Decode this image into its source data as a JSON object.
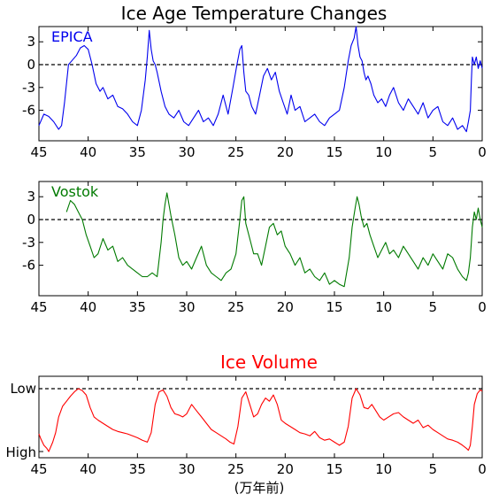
{
  "title": "Ice Age Temperature Changes",
  "xlabel": "(万年前)",
  "colors": {
    "epica": "#0000ee",
    "vostok": "#007a00",
    "ice": "#ff0000"
  },
  "chart_data": [
    {
      "type": "line",
      "name": "EPICA",
      "label": "EPICA",
      "xlim": [
        45,
        0
      ],
      "ylim": [
        -10,
        5
      ],
      "yticks": [
        3,
        0,
        -3,
        -6
      ],
      "xticks": [
        45,
        40,
        35,
        30,
        25,
        20,
        15,
        10,
        5,
        0
      ],
      "x": [
        45.0,
        44.5,
        44.0,
        43.5,
        43.0,
        42.7,
        42.4,
        42.0,
        41.6,
        41.2,
        40.8,
        40.4,
        40.0,
        39.6,
        39.2,
        38.8,
        38.5,
        38.0,
        37.5,
        37.0,
        36.5,
        36.0,
        35.5,
        35.0,
        34.6,
        34.2,
        34.0,
        33.8,
        33.6,
        33.4,
        33.2,
        33.0,
        32.6,
        32.2,
        31.8,
        31.3,
        30.8,
        30.3,
        29.8,
        29.3,
        28.8,
        28.3,
        27.8,
        27.3,
        26.8,
        26.3,
        25.8,
        25.3,
        24.9,
        24.6,
        24.4,
        24.2,
        24.0,
        23.7,
        23.4,
        23.0,
        22.6,
        22.2,
        21.8,
        21.4,
        21.0,
        20.6,
        20.2,
        19.8,
        19.4,
        19.0,
        18.5,
        18.0,
        17.5,
        17.0,
        16.5,
        16.0,
        15.5,
        15.0,
        14.5,
        14.0,
        13.6,
        13.3,
        13.0,
        12.8,
        12.6,
        12.4,
        12.2,
        12.0,
        11.8,
        11.6,
        11.3,
        11.0,
        10.6,
        10.2,
        9.8,
        9.4,
        9.0,
        8.5,
        8.0,
        7.5,
        7.0,
        6.5,
        6.0,
        5.5,
        5.0,
        4.5,
        4.0,
        3.5,
        3.0,
        2.5,
        2.0,
        1.6,
        1.4,
        1.2,
        1.1,
        1.0,
        0.8,
        0.6,
        0.4,
        0.2,
        0.0
      ],
      "y": [
        -8.0,
        -6.5,
        -6.8,
        -7.5,
        -8.5,
        -8.0,
        -5.0,
        0.0,
        0.6,
        1.2,
        2.2,
        2.5,
        2.0,
        0.0,
        -2.5,
        -3.5,
        -3.0,
        -4.5,
        -4.0,
        -5.5,
        -5.8,
        -6.5,
        -7.5,
        -8.0,
        -6.0,
        -2.0,
        1.0,
        4.5,
        2.0,
        0.5,
        0.0,
        -1.0,
        -3.5,
        -5.5,
        -6.5,
        -7.0,
        -6.0,
        -7.5,
        -8.0,
        -7.0,
        -6.0,
        -7.5,
        -7.0,
        -8.0,
        -6.5,
        -4.0,
        -6.5,
        -3.0,
        0.0,
        2.0,
        2.5,
        -1.0,
        -3.5,
        -4.0,
        -5.5,
        -6.5,
        -4.0,
        -1.5,
        -0.5,
        -2.0,
        -1.0,
        -3.5,
        -5.0,
        -6.5,
        -4.0,
        -6.0,
        -5.5,
        -7.5,
        -7.0,
        -6.5,
        -7.5,
        -8.0,
        -7.0,
        -6.5,
        -6.0,
        -3.0,
        0.5,
        2.5,
        3.5,
        5.0,
        2.5,
        1.0,
        0.5,
        -1.0,
        -2.0,
        -1.5,
        -2.5,
        -4.0,
        -5.0,
        -4.5,
        -5.5,
        -4.0,
        -3.0,
        -5.0,
        -6.0,
        -4.5,
        -5.5,
        -6.5,
        -5.0,
        -7.0,
        -6.0,
        -5.5,
        -7.5,
        -8.0,
        -7.0,
        -8.5,
        -8.0,
        -8.8,
        -7.5,
        -6.0,
        -2.0,
        1.0,
        0.0,
        1.0,
        -0.5,
        0.5,
        -0.5
      ]
    },
    {
      "type": "line",
      "name": "Vostok",
      "label": "Vostok",
      "xlim": [
        45,
        0
      ],
      "ylim": [
        -10,
        5
      ],
      "yticks": [
        3,
        0,
        -3,
        -6
      ],
      "xticks": [
        45,
        40,
        35,
        30,
        25,
        20,
        15,
        10,
        5,
        0
      ],
      "x": [
        42.2,
        41.8,
        41.4,
        41.0,
        40.6,
        40.2,
        39.8,
        39.4,
        39.0,
        38.5,
        38.0,
        37.5,
        37.0,
        36.5,
        36.0,
        35.5,
        35.0,
        34.5,
        34.0,
        33.5,
        33.0,
        32.6,
        32.4,
        32.2,
        32.0,
        31.6,
        31.2,
        30.8,
        30.4,
        30.0,
        29.5,
        29.0,
        28.5,
        28.0,
        27.5,
        27.0,
        26.5,
        26.0,
        25.5,
        25.0,
        24.6,
        24.4,
        24.2,
        24.0,
        23.6,
        23.2,
        22.8,
        22.4,
        22.0,
        21.6,
        21.2,
        20.8,
        20.4,
        20.0,
        19.5,
        19.0,
        18.5,
        18.0,
        17.5,
        17.0,
        16.5,
        16.0,
        15.5,
        15.0,
        14.5,
        14.0,
        13.5,
        13.2,
        12.9,
        12.7,
        12.5,
        12.3,
        12.0,
        11.7,
        11.4,
        11.0,
        10.6,
        10.2,
        9.8,
        9.4,
        9.0,
        8.5,
        8.0,
        7.5,
        7.0,
        6.5,
        6.0,
        5.5,
        5.0,
        4.5,
        4.0,
        3.5,
        3.0,
        2.5,
        2.0,
        1.6,
        1.4,
        1.2,
        1.0,
        0.8,
        0.6,
        0.4,
        0.2,
        0.0
      ],
      "y": [
        1.0,
        2.5,
        2.0,
        1.0,
        0.0,
        -2.0,
        -3.5,
        -5.0,
        -4.5,
        -2.5,
        -4.0,
        -3.5,
        -5.5,
        -5.0,
        -6.0,
        -6.5,
        -7.0,
        -7.5,
        -7.5,
        -7.0,
        -7.5,
        -3.0,
        0.0,
        2.0,
        3.5,
        0.5,
        -2.0,
        -5.0,
        -6.0,
        -5.5,
        -6.5,
        -5.0,
        -3.5,
        -6.0,
        -7.0,
        -7.5,
        -8.0,
        -7.0,
        -6.5,
        -4.5,
        0.0,
        2.5,
        3.0,
        -0.5,
        -2.5,
        -4.5,
        -4.5,
        -6.0,
        -3.5,
        -1.0,
        -0.5,
        -2.0,
        -1.5,
        -3.5,
        -4.5,
        -6.0,
        -5.0,
        -7.0,
        -6.5,
        -7.5,
        -8.0,
        -7.0,
        -8.5,
        -8.0,
        -8.5,
        -8.8,
        -5.0,
        -1.0,
        1.5,
        3.0,
        2.0,
        0.5,
        -1.0,
        -0.5,
        -2.0,
        -3.5,
        -5.0,
        -4.0,
        -3.0,
        -4.5,
        -4.0,
        -5.0,
        -3.5,
        -4.5,
        -5.5,
        -6.5,
        -5.0,
        -6.0,
        -4.5,
        -5.5,
        -6.5,
        -4.5,
        -5.0,
        -6.5,
        -7.5,
        -8.0,
        -7.0,
        -5.0,
        -1.0,
        1.0,
        0.0,
        1.5,
        0.0,
        -1.0
      ]
    },
    {
      "type": "line",
      "name": "Ice Volume",
      "title": "Ice Volume",
      "xlim": [
        45,
        0
      ],
      "ylim": [
        0,
        1
      ],
      "ytick_labels": [
        "Low",
        "High"
      ],
      "xticks": [
        45,
        40,
        35,
        30,
        25,
        20,
        15,
        10,
        5,
        0
      ],
      "x": [
        45.0,
        44.8,
        44.5,
        44.2,
        44.0,
        43.6,
        43.3,
        43.0,
        42.6,
        42.2,
        41.8,
        41.4,
        41.0,
        40.6,
        40.2,
        39.8,
        39.4,
        39.0,
        38.5,
        38.0,
        37.5,
        37.0,
        36.5,
        36.0,
        35.5,
        35.0,
        34.5,
        34.0,
        33.6,
        33.2,
        32.8,
        32.4,
        32.0,
        31.6,
        31.2,
        30.8,
        30.4,
        30.0,
        29.5,
        29.0,
        28.5,
        28.0,
        27.5,
        27.0,
        26.5,
        26.0,
        25.6,
        25.2,
        24.8,
        24.4,
        24.0,
        23.6,
        23.2,
        22.8,
        22.4,
        22.0,
        21.6,
        21.2,
        20.8,
        20.4,
        20.0,
        19.5,
        19.0,
        18.5,
        18.0,
        17.5,
        17.0,
        16.5,
        16.0,
        15.5,
        15.0,
        14.5,
        14.0,
        13.6,
        13.2,
        12.8,
        12.4,
        12.0,
        11.6,
        11.2,
        10.8,
        10.4,
        10.0,
        9.5,
        9.0,
        8.5,
        8.0,
        7.5,
        7.0,
        6.5,
        6.0,
        5.5,
        5.0,
        4.5,
        4.0,
        3.5,
        3.0,
        2.5,
        2.0,
        1.6,
        1.4,
        1.2,
        1.0,
        0.8,
        0.5,
        0.2,
        0.0
      ],
      "y": [
        0.28,
        0.2,
        0.1,
        0.05,
        0.0,
        0.15,
        0.3,
        0.55,
        0.72,
        0.8,
        0.88,
        0.95,
        1.0,
        0.97,
        0.9,
        0.7,
        0.55,
        0.5,
        0.45,
        0.4,
        0.35,
        0.32,
        0.3,
        0.28,
        0.25,
        0.22,
        0.18,
        0.15,
        0.3,
        0.75,
        0.95,
        0.98,
        0.88,
        0.7,
        0.6,
        0.58,
        0.55,
        0.6,
        0.75,
        0.65,
        0.55,
        0.45,
        0.35,
        0.3,
        0.25,
        0.2,
        0.15,
        0.12,
        0.4,
        0.85,
        0.95,
        0.75,
        0.55,
        0.6,
        0.75,
        0.85,
        0.8,
        0.9,
        0.75,
        0.5,
        0.45,
        0.4,
        0.35,
        0.3,
        0.28,
        0.25,
        0.32,
        0.22,
        0.18,
        0.2,
        0.15,
        0.1,
        0.15,
        0.4,
        0.85,
        1.0,
        0.9,
        0.7,
        0.68,
        0.75,
        0.65,
        0.55,
        0.5,
        0.55,
        0.6,
        0.62,
        0.55,
        0.5,
        0.45,
        0.5,
        0.38,
        0.42,
        0.35,
        0.3,
        0.25,
        0.2,
        0.18,
        0.15,
        0.1,
        0.05,
        0.02,
        0.1,
        0.4,
        0.75,
        0.92,
        0.98,
        0.96
      ]
    }
  ]
}
